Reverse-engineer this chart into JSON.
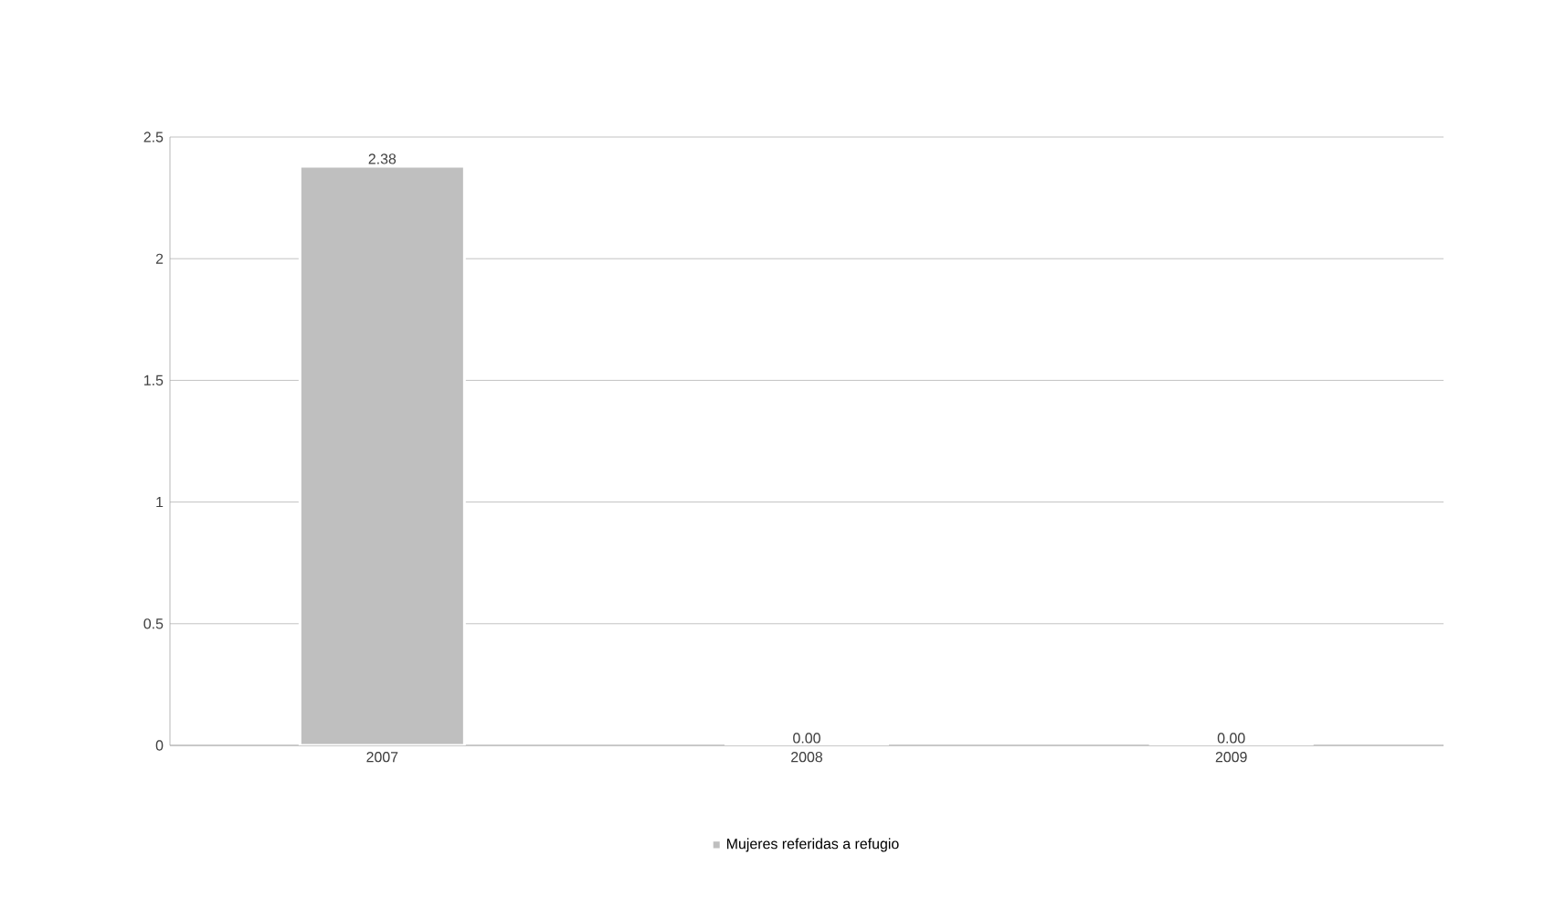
{
  "chart_data": {
    "type": "bar",
    "categories": [
      "2007",
      "2008",
      "2009"
    ],
    "series": [
      {
        "name": "Mujeres referidas a refugio",
        "color": "#bfbfbf",
        "values": [
          2.38,
          0,
          0
        ],
        "value_labels": [
          "2.38",
          "0.00",
          "0.00"
        ]
      }
    ],
    "ylim": [
      0,
      2.5
    ],
    "yticks": [
      0,
      0.5,
      1,
      1.5,
      2,
      2.5
    ],
    "grid": "y",
    "legend": "bottom"
  }
}
